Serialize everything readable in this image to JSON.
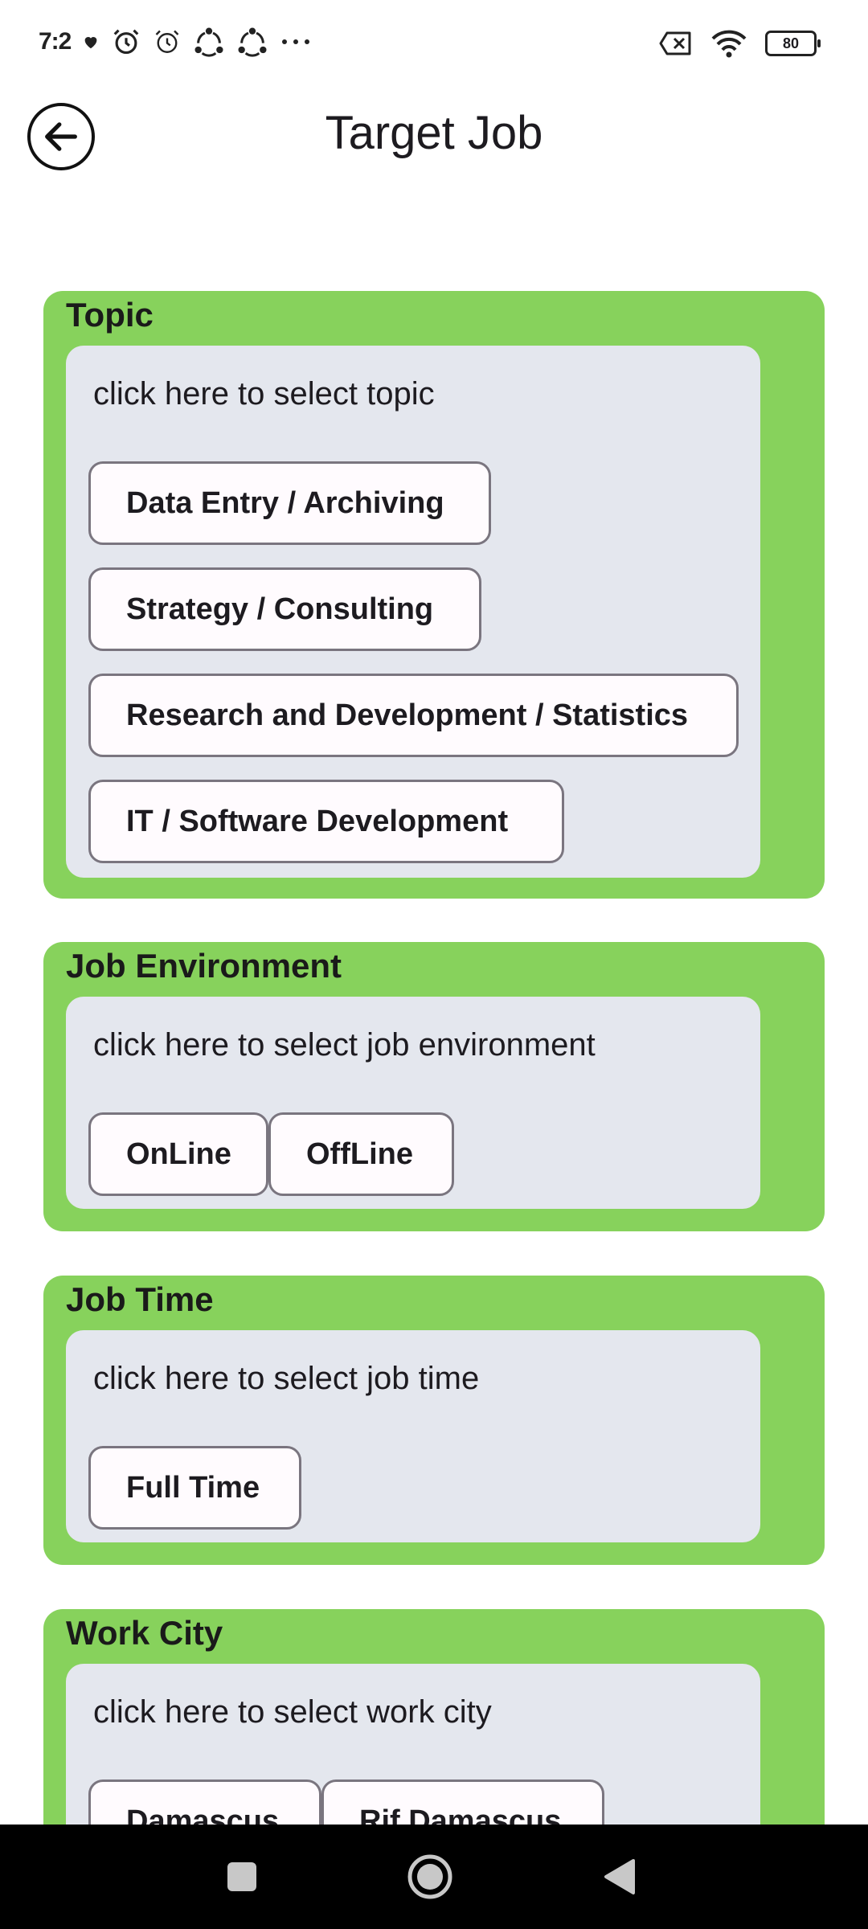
{
  "status_bar": {
    "time": "7:2",
    "icons": [
      "heart-icon",
      "alarm-icon",
      "alarm-icon",
      "share-icon",
      "share-icon",
      "more-dots-icon"
    ],
    "right_icons": [
      "sim-off-icon",
      "wifi-icon"
    ],
    "battery": "80"
  },
  "app_bar": {
    "title": "Target Job",
    "back_icon": "back-arrow-icon"
  },
  "sections": [
    {
      "title": "Topic",
      "hint": "click here to select topic",
      "chips": [
        "Data Entry / Archiving",
        "Strategy / Consulting",
        "Research and Development / Statistics",
        "IT / Software Development"
      ]
    },
    {
      "title": "Job Environment",
      "hint": "click here to select job environment",
      "chips": [
        "OnLine",
        "OffLine"
      ]
    },
    {
      "title": "Job Time",
      "hint": "click here to select job time",
      "chips": [
        "Full Time"
      ]
    },
    {
      "title": "Work City",
      "hint": "click here to select work city",
      "chips": [
        "Damascus",
        "Rif Damascus"
      ]
    }
  ],
  "nav_bar": {
    "icons": [
      "recent-apps-icon",
      "home-icon",
      "back-icon"
    ]
  },
  "colors": {
    "section_bg": "#87d25c",
    "inner_bg": "#e4e7ee",
    "chip_bg": "#fffbfe",
    "chip_border": "#7a757f"
  }
}
